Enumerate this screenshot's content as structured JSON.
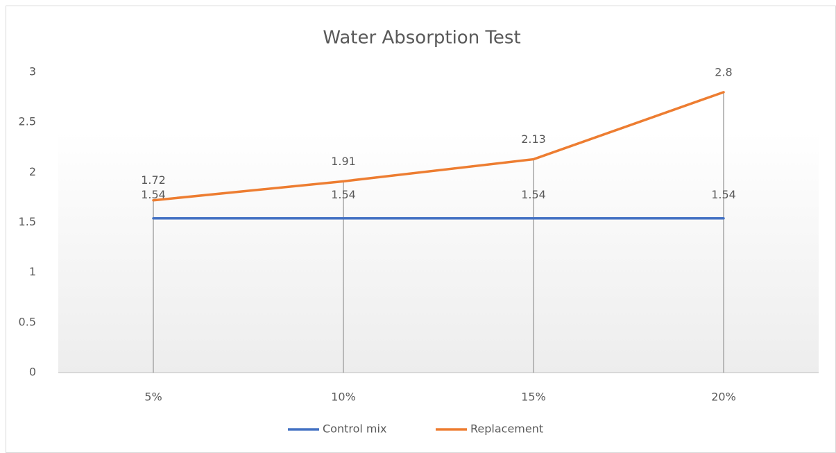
{
  "chart_data": {
    "type": "line",
    "title": "Water Absorption Test",
    "categories": [
      "5%",
      "10%",
      "15%",
      "20%"
    ],
    "series": [
      {
        "name": "Control mix",
        "color": "#4472c4",
        "values": [
          1.54,
          1.54,
          1.54,
          1.54
        ]
      },
      {
        "name": "Replacement",
        "color": "#ed7d31",
        "values": [
          1.72,
          1.91,
          2.13,
          2.8
        ]
      }
    ],
    "ylim": [
      0,
      3
    ],
    "yticks": [
      0,
      0.5,
      1,
      1.5,
      2,
      2.5,
      3
    ],
    "grid": false,
    "drop_lines": true,
    "data_labels": true,
    "legend": "bottom"
  }
}
